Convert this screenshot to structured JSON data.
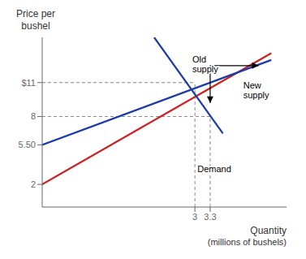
{
  "chart_data": {
    "type": "line",
    "ylabel": "Price per\nbushel",
    "xlabel": "Quantity\n(millions of bushels)",
    "xlim": [
      0,
      4.8
    ],
    "ylim": [
      0,
      15
    ],
    "xticks": [
      3,
      3.3
    ],
    "yticks": [
      2,
      {
        "value": 5.5,
        "label": "5.50"
      },
      8,
      {
        "value": 11,
        "label": "$11"
      }
    ],
    "grid": false,
    "series": [
      {
        "color": "#cc2222",
        "x": [
          0,
          4.5
        ],
        "values": [
          2,
          13.6
        ]
      },
      {
        "color": "#1a3aaa",
        "x": [
          2.2,
          3.55
        ],
        "values": [
          15,
          6.5
        ]
      },
      {
        "color": "#1a3aaa",
        "x": [
          0,
          4.5
        ],
        "values": [
          5.5,
          13.0
        ]
      }
    ],
    "reference_points": [
      {
        "x": 3.0,
        "y": 11.0
      },
      {
        "x": 3.3,
        "y": 8.0
      }
    ],
    "arrows": [
      {
        "x": [
          3.3,
          4.25
        ],
        "y": [
          12.5,
          12.5
        ]
      },
      {
        "x": [
          3.3,
          3.3
        ],
        "y": [
          12.5,
          9.2
        ]
      }
    ],
    "annotations": [
      {
        "text": "Old\nsupply",
        "x": 2.95,
        "y": 13.5
      },
      {
        "text": "New\nsupply",
        "x": 3.95,
        "y": 11.2
      },
      {
        "text": "Demand",
        "x": 3.05,
        "y": 3.8
      }
    ]
  }
}
